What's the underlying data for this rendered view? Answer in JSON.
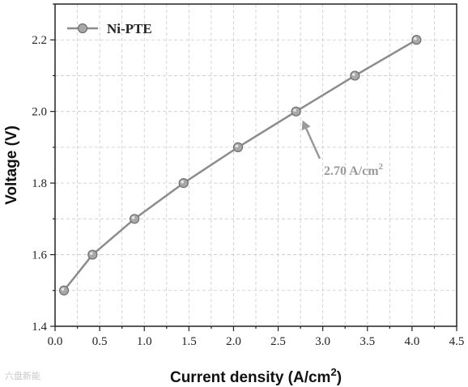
{
  "chart_data": {
    "type": "line",
    "title": "",
    "xlabel": "Current density (A/cm",
    "xlabel_sup": "2",
    "xlabel_tail": ")",
    "ylabel": "Voltage (V)",
    "xlim": [
      0.0,
      4.5
    ],
    "ylim": [
      1.4,
      2.3
    ],
    "x_ticks": [
      "0.0",
      "0.5",
      "1.0",
      "1.5",
      "2.0",
      "2.5",
      "3.0",
      "3.5",
      "4.0",
      "4.5"
    ],
    "y_ticks": [
      "1.4",
      "1.6",
      "1.8",
      "2.0",
      "2.2"
    ],
    "grid": true,
    "legend_position": "top-left",
    "series": [
      {
        "name": "Ni-PTE",
        "color": "#8c8c8c",
        "x": [
          0.1,
          0.42,
          0.89,
          1.44,
          2.05,
          2.7,
          3.36,
          4.05
        ],
        "y": [
          1.5,
          1.6,
          1.7,
          1.8,
          1.9,
          2.0,
          2.1,
          2.2
        ]
      }
    ],
    "annotation": {
      "text": "2.70 A/cm",
      "sup": "2",
      "points_to": [
        2.7,
        2.0
      ],
      "color": "#9a9a9a"
    }
  },
  "watermark": "六盘新能"
}
